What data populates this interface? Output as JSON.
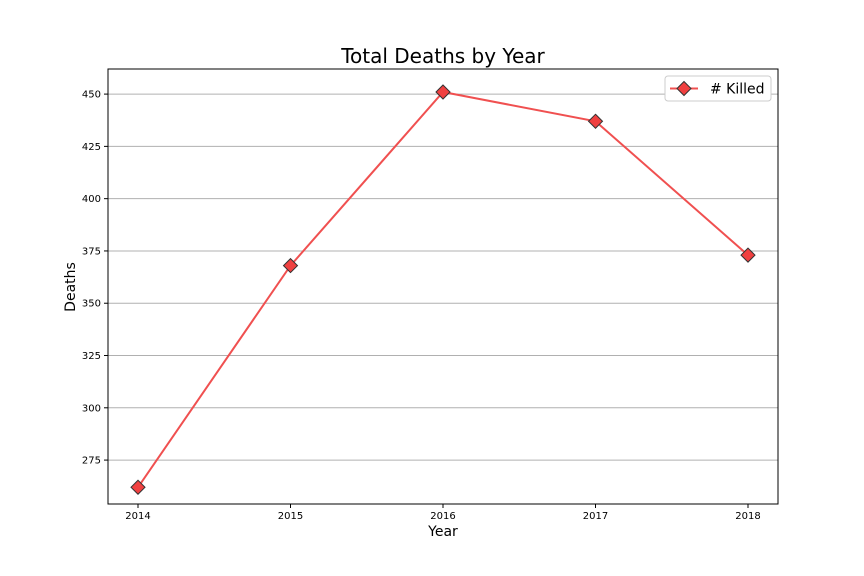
{
  "chart_data": {
    "type": "line",
    "title": "Total Deaths by Year",
    "xlabel": "Year",
    "ylabel": "Deaths",
    "x": [
      "2014",
      "2015",
      "2016",
      "2017",
      "2018"
    ],
    "series": [
      {
        "name": "# Killed",
        "values": [
          262,
          368,
          451,
          437,
          373
        ]
      }
    ],
    "yticks": [
      "275",
      "300",
      "325",
      "350",
      "375",
      "400",
      "425",
      "450"
    ],
    "ylim": [
      254,
      462
    ],
    "grid": "horizontal",
    "legend_position": "top-right",
    "marker": "diamond",
    "colors": {
      "line": "#f05050",
      "marker_fill": "#f04040",
      "marker_edge": "#333333",
      "grid": "#b0b0b0"
    }
  }
}
